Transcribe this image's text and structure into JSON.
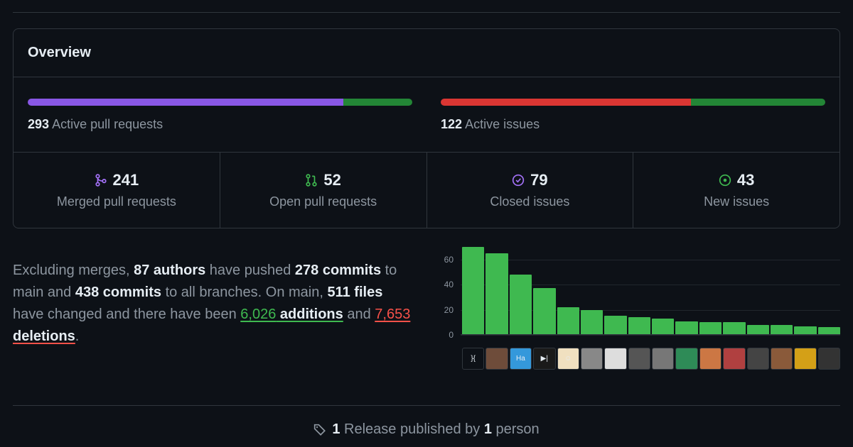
{
  "overview": {
    "title": "Overview",
    "pull_requests": {
      "count": "293",
      "label": "Active pull requests",
      "bar": {
        "merged_pct": 82,
        "open_pct": 18,
        "merged_color": "#8957e5",
        "open_color": "#238636"
      }
    },
    "issues": {
      "count": "122",
      "label": "Active issues",
      "bar": {
        "closed_pct": 65,
        "new_pct": 35,
        "closed_color": "#da3633",
        "new_color": "#238636"
      }
    },
    "stats": {
      "merged_pr": {
        "icon_color": "#a371f7",
        "count": "241",
        "label": "Merged pull requests"
      },
      "open_pr": {
        "icon_color": "#3fb950",
        "count": "52",
        "label": "Open pull requests"
      },
      "closed_is": {
        "icon_color": "#a371f7",
        "count": "79",
        "label": "Closed issues"
      },
      "new_is": {
        "icon_color": "#3fb950",
        "count": "43",
        "label": "New issues"
      }
    }
  },
  "summary": {
    "t1": "Excluding merges, ",
    "authors": "87 authors",
    "t2": " have pushed ",
    "commits_main": "278 commits",
    "t3": " to main and ",
    "commits_all": "438 commits",
    "t4": " to all branches. On main, ",
    "files": "511 files",
    "t5": " have changed and there have been ",
    "additions_n": "6,026",
    "additions_w": " additions",
    "t6": " and ",
    "deletions_n": "7,653",
    "deletions_w": " deletions",
    "t7": "."
  },
  "chart": {
    "type": "bar",
    "bar_color": "#3fb950",
    "grid_color": "#21262d",
    "background_color": "#0d1117",
    "ymax": 70,
    "yticks": [
      0,
      20,
      40,
      60
    ],
    "values": [
      70,
      65,
      48,
      37,
      22,
      20,
      15,
      14,
      13,
      11,
      10,
      10,
      8,
      8,
      7,
      6
    ],
    "avatars_bg": [
      "#0d1117",
      "#6e4c3a",
      "#3498db",
      "#1a1a1a",
      "#f0e0c0",
      "#888888",
      "#ddd",
      "#555",
      "#777",
      "#2e8b57",
      "#cc7744",
      "#b04040",
      "#444",
      "#8a5a3a",
      "#d4a017",
      "#333"
    ],
    "avatars_txt": [
      "}{",
      "",
      "Ha",
      "▶|",
      "☺",
      "",
      "",
      "",
      "",
      "",
      "",
      "",
      "",
      "",
      "",
      ""
    ]
  },
  "release": {
    "count": "1",
    "mid": " Release published by ",
    "people": "1",
    "tail": " person"
  }
}
